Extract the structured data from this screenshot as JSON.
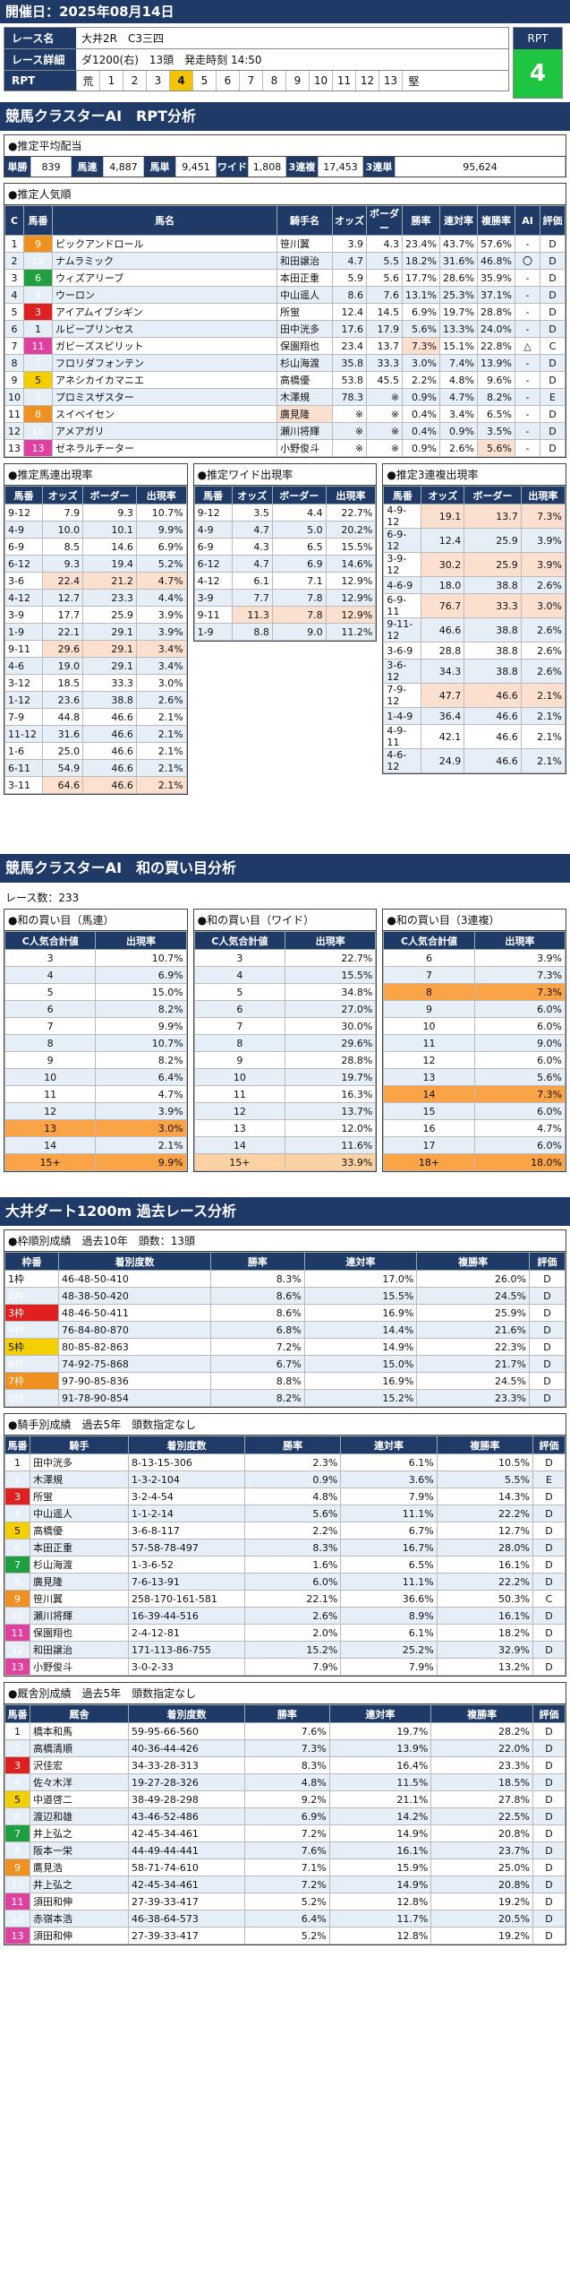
{
  "date": "開催日：2025年08月14日",
  "race": {
    "name_label": "レース名",
    "name": "大井2R　C3三四",
    "detail_label": "レース詳細",
    "detail": "ダ1200(右)　13頭　発走時刻 14:50",
    "rpt_label": "RPT",
    "rpt_first": "荒",
    "rpt_cells": [
      "1",
      "2",
      "3",
      "4",
      "5",
      "6",
      "7",
      "8",
      "9",
      "10",
      "11",
      "12",
      "13"
    ],
    "rpt_last": "堅",
    "rpt_selected": "4",
    "rpt_box_label": "RPT",
    "rpt_box_value": "4"
  },
  "sec1": "競馬クラスターAI　RPT分析",
  "avg": {
    "title": "●推定平均配当",
    "items": [
      [
        "単勝",
        "839"
      ],
      [
        "馬連",
        "4,887"
      ],
      [
        "馬単",
        "9,451"
      ],
      [
        "ワイド",
        "1,808"
      ],
      [
        "3連複",
        "17,453"
      ],
      [
        "3連単",
        "95,624"
      ]
    ]
  },
  "pop": {
    "title": "●推定人気順",
    "headers": [
      "C",
      "馬番",
      "馬名",
      "騎手名",
      "オッズ",
      "ボーダー",
      "勝率",
      "連対率",
      "複勝率",
      "AI",
      "評価"
    ],
    "rows": [
      [
        "1",
        "9",
        "ピックアンドロール",
        "笹川翼",
        "3.9",
        "4.3",
        "23.4%",
        "43.7%",
        "57.6%",
        "-",
        "D"
      ],
      [
        "2",
        "12",
        "ナムラミック",
        "和田譲治",
        "4.7",
        "5.5",
        "18.2%",
        "31.6%",
        "46.8%",
        "〇",
        "D"
      ],
      [
        "3",
        "6",
        "ウィズアリーブ",
        "本田正重",
        "5.9",
        "5.6",
        "17.7%",
        "28.6%",
        "35.9%",
        "-",
        "D"
      ],
      [
        "4",
        "4",
        "ウーロン",
        "中山遥人",
        "8.6",
        "7.6",
        "13.1%",
        "25.3%",
        "37.1%",
        "-",
        "D"
      ],
      [
        "5",
        "3",
        "アイアムイブシギン",
        "所蛍",
        "12.4",
        "14.5",
        "6.9%",
        "19.7%",
        "28.8%",
        "-",
        "D"
      ],
      [
        "6",
        "1",
        "ルビープリンセス",
        "田中洸多",
        "17.6",
        "17.9",
        "5.6%",
        "13.3%",
        "24.0%",
        "-",
        "D"
      ],
      [
        "7",
        "11",
        "ガビーズスピリット",
        "保園翔也",
        "23.4",
        "13.7",
        "7.3%",
        "15.1%",
        "22.8%",
        "△",
        "C"
      ],
      [
        "8",
        "7",
        "フロリダフォンテン",
        "杉山海渡",
        "35.8",
        "33.3",
        "3.0%",
        "7.4%",
        "13.9%",
        "-",
        "D"
      ],
      [
        "9",
        "5",
        "アネシカイカマニエ",
        "高橋優",
        "53.8",
        "45.5",
        "2.2%",
        "4.8%",
        "9.6%",
        "-",
        "D"
      ],
      [
        "10",
        "2",
        "プロミスザスター",
        "木澤規",
        "78.3",
        "※",
        "0.9%",
        "4.7%",
        "8.2%",
        "-",
        "E"
      ],
      [
        "11",
        "8",
        "スイベイセン",
        "廣見隆",
        "※",
        "※",
        "0.4%",
        "3.4%",
        "6.5%",
        "-",
        "D"
      ],
      [
        "12",
        "10",
        "アメアガリ",
        "瀬川将輝",
        "※",
        "※",
        "0.4%",
        "0.9%",
        "3.5%",
        "-",
        "D"
      ],
      [
        "13",
        "13",
        "ゼネラルチーター",
        "小野俊斗",
        "※",
        "※",
        "0.9%",
        "2.6%",
        "5.6%",
        "-",
        "D"
      ]
    ]
  },
  "umaren": {
    "title": "●推定馬連出現率",
    "headers": [
      "馬番",
      "オッズ",
      "ボーダー",
      "出現率"
    ],
    "rows": [
      [
        "9-12",
        "7.9",
        "9.3",
        "10.7%"
      ],
      [
        "4-9",
        "10.0",
        "10.1",
        "9.9%"
      ],
      [
        "6-9",
        "8.5",
        "14.6",
        "6.9%"
      ],
      [
        "6-12",
        "9.3",
        "19.4",
        "5.2%"
      ],
      [
        "3-6",
        "22.4",
        "21.2",
        "4.7%"
      ],
      [
        "4-12",
        "12.7",
        "23.3",
        "4.4%"
      ],
      [
        "3-9",
        "17.7",
        "25.9",
        "3.9%"
      ],
      [
        "1-9",
        "22.1",
        "29.1",
        "3.9%"
      ],
      [
        "9-11",
        "29.6",
        "29.1",
        "3.4%"
      ],
      [
        "4-6",
        "19.0",
        "29.1",
        "3.4%"
      ],
      [
        "3-12",
        "18.5",
        "33.3",
        "3.0%"
      ],
      [
        "1-12",
        "23.6",
        "38.8",
        "2.6%"
      ],
      [
        "7-9",
        "44.8",
        "46.6",
        "2.1%"
      ],
      [
        "11-12",
        "31.6",
        "46.6",
        "2.1%"
      ],
      [
        "1-6",
        "25.0",
        "46.6",
        "2.1%"
      ],
      [
        "6-11",
        "54.9",
        "46.6",
        "2.1%"
      ],
      [
        "3-11",
        "64.6",
        "46.6",
        "2.1%"
      ]
    ]
  },
  "wide": {
    "title": "●推定ワイド出現率",
    "headers": [
      "馬番",
      "オッズ",
      "ボーダー",
      "出現率"
    ],
    "rows": [
      [
        "9-12",
        "3.5",
        "4.4",
        "22.7%"
      ],
      [
        "4-9",
        "4.7",
        "5.0",
        "20.2%"
      ],
      [
        "6-9",
        "4.3",
        "6.5",
        "15.5%"
      ],
      [
        "6-12",
        "4.7",
        "6.9",
        "14.6%"
      ],
      [
        "4-12",
        "6.1",
        "7.1",
        "12.9%"
      ],
      [
        "3-9",
        "7.7",
        "7.8",
        "12.9%"
      ],
      [
        "9-11",
        "11.3",
        "7.8",
        "12.9%"
      ],
      [
        "1-9",
        "8.8",
        "9.0",
        "11.2%"
      ]
    ]
  },
  "trio": {
    "title": "●推定3連複出現率",
    "headers": [
      "馬番",
      "オッズ",
      "ボーダー",
      "出現率"
    ],
    "rows": [
      [
        "4-9-12",
        "19.1",
        "13.7",
        "7.3%"
      ],
      [
        "6-9-12",
        "12.4",
        "25.9",
        "3.9%"
      ],
      [
        "3-9-12",
        "30.2",
        "25.9",
        "3.9%"
      ],
      [
        "4-6-9",
        "18.0",
        "38.8",
        "2.6%"
      ],
      [
        "6-9-11",
        "76.7",
        "33.3",
        "3.0%"
      ],
      [
        "9-11-12",
        "46.6",
        "38.8",
        "2.6%"
      ],
      [
        "3-6-9",
        "28.8",
        "38.8",
        "2.6%"
      ],
      [
        "3-6-12",
        "34.3",
        "38.8",
        "2.6%"
      ],
      [
        "7-9-12",
        "47.7",
        "46.6",
        "2.1%"
      ],
      [
        "1-4-9",
        "36.4",
        "46.6",
        "2.1%"
      ],
      [
        "4-9-11",
        "42.1",
        "46.6",
        "2.1%"
      ],
      [
        "4-6-12",
        "24.9",
        "46.6",
        "2.1%"
      ]
    ]
  },
  "sec2": "競馬クラスターAI　和の買い目分析",
  "race_count": "レース数：233",
  "wa1": {
    "title": "●和の買い目（馬連）",
    "headers": [
      "C人気合計値",
      "出現率"
    ],
    "rows": [
      [
        "3",
        "10.7%"
      ],
      [
        "4",
        "6.9%"
      ],
      [
        "5",
        "15.0%"
      ],
      [
        "6",
        "8.2%"
      ],
      [
        "7",
        "9.9%"
      ],
      [
        "8",
        "10.7%"
      ],
      [
        "9",
        "8.2%"
      ],
      [
        "10",
        "6.4%"
      ],
      [
        "11",
        "4.7%"
      ],
      [
        "12",
        "3.9%"
      ],
      [
        "13",
        "3.0%"
      ],
      [
        "14",
        "2.1%"
      ],
      [
        "15+",
        "9.9%"
      ]
    ]
  },
  "wa2": {
    "title": "●和の買い目（ワイド）",
    "headers": [
      "C人気合計値",
      "出現率"
    ],
    "rows": [
      [
        "3",
        "22.7%"
      ],
      [
        "4",
        "15.5%"
      ],
      [
        "5",
        "34.8%"
      ],
      [
        "6",
        "27.0%"
      ],
      [
        "7",
        "30.0%"
      ],
      [
        "8",
        "29.6%"
      ],
      [
        "9",
        "28.8%"
      ],
      [
        "10",
        "19.7%"
      ],
      [
        "11",
        "16.3%"
      ],
      [
        "12",
        "13.7%"
      ],
      [
        "13",
        "12.0%"
      ],
      [
        "14",
        "11.6%"
      ],
      [
        "15+",
        "33.9%"
      ]
    ]
  },
  "wa3": {
    "title": "●和の買い目（3連複）",
    "headers": [
      "C人気合計値",
      "出現率"
    ],
    "rows": [
      [
        "6",
        "3.9%"
      ],
      [
        "7",
        "7.3%"
      ],
      [
        "8",
        "7.3%"
      ],
      [
        "9",
        "6.0%"
      ],
      [
        "10",
        "6.0%"
      ],
      [
        "11",
        "9.0%"
      ],
      [
        "12",
        "6.0%"
      ],
      [
        "13",
        "5.6%"
      ],
      [
        "14",
        "7.3%"
      ],
      [
        "15",
        "6.0%"
      ],
      [
        "16",
        "4.7%"
      ],
      [
        "17",
        "6.0%"
      ],
      [
        "18+",
        "18.0%"
      ]
    ]
  },
  "sec3": "大井ダート1200m 過去レース分析",
  "waku": {
    "title": "●枠順別成績　過去10年　頭数：13頭",
    "headers": [
      "枠番",
      "着別度数",
      "勝率",
      "連対率",
      "複勝率",
      "評価"
    ],
    "rows": [
      [
        "1枠",
        "46-48-50-410",
        "8.3%",
        "17.0%",
        "26.0%",
        "D"
      ],
      [
        "2枠",
        "48-38-50-420",
        "8.6%",
        "15.5%",
        "24.5%",
        "D"
      ],
      [
        "3枠",
        "48-46-50-411",
        "8.6%",
        "16.9%",
        "25.9%",
        "D"
      ],
      [
        "4枠",
        "76-84-80-870",
        "6.8%",
        "14.4%",
        "21.6%",
        "D"
      ],
      [
        "5枠",
        "80-85-82-863",
        "7.2%",
        "14.9%",
        "22.3%",
        "D"
      ],
      [
        "6枠",
        "74-92-75-868",
        "6.7%",
        "15.0%",
        "21.7%",
        "D"
      ],
      [
        "7枠",
        "97-90-85-836",
        "8.8%",
        "16.9%",
        "24.5%",
        "D"
      ],
      [
        "8枠",
        "91-78-90-854",
        "8.2%",
        "15.2%",
        "23.3%",
        "D"
      ]
    ]
  },
  "jockey": {
    "title": "●騎手別成績　過去5年　頭数指定なし",
    "headers": [
      "馬番",
      "騎手",
      "着別度数",
      "勝率",
      "連対率",
      "複勝率",
      "評価"
    ],
    "rows": [
      [
        "1",
        "田中洸多",
        "8-13-15-306",
        "2.3%",
        "6.1%",
        "10.5%",
        "D"
      ],
      [
        "2",
        "木澤規",
        "1-3-2-104",
        "0.9%",
        "3.6%",
        "5.5%",
        "E"
      ],
      [
        "3",
        "所蛍",
        "3-2-4-54",
        "4.8%",
        "7.9%",
        "14.3%",
        "D"
      ],
      [
        "4",
        "中山遥人",
        "1-1-2-14",
        "5.6%",
        "11.1%",
        "22.2%",
        "D"
      ],
      [
        "5",
        "高橋優",
        "3-6-8-117",
        "2.2%",
        "6.7%",
        "12.7%",
        "D"
      ],
      [
        "6",
        "本田正重",
        "57-58-78-497",
        "8.3%",
        "16.7%",
        "28.0%",
        "D"
      ],
      [
        "7",
        "杉山海渡",
        "1-3-6-52",
        "1.6%",
        "6.5%",
        "16.1%",
        "D"
      ],
      [
        "8",
        "廣見隆",
        "7-6-13-91",
        "6.0%",
        "11.1%",
        "22.2%",
        "D"
      ],
      [
        "9",
        "笹川翼",
        "258-170-161-581",
        "22.1%",
        "36.6%",
        "50.3%",
        "C"
      ],
      [
        "10",
        "瀬川将輝",
        "16-39-44-516",
        "2.6%",
        "8.9%",
        "16.1%",
        "D"
      ],
      [
        "11",
        "保園翔也",
        "2-4-12-81",
        "2.0%",
        "6.1%",
        "18.2%",
        "D"
      ],
      [
        "12",
        "和田譲治",
        "171-113-86-755",
        "15.2%",
        "25.2%",
        "32.9%",
        "D"
      ],
      [
        "13",
        "小野俊斗",
        "3-0-2-33",
        "7.9%",
        "7.9%",
        "13.2%",
        "D"
      ]
    ]
  },
  "trainer": {
    "title": "●厩舎別成績　過去5年　頭数指定なし",
    "headers": [
      "馬番",
      "厩舎",
      "着別度数",
      "勝率",
      "連対率",
      "複勝率",
      "評価"
    ],
    "rows": [
      [
        "1",
        "橋本和馬",
        "59-95-66-560",
        "7.6%",
        "19.7%",
        "28.2%",
        "D"
      ],
      [
        "2",
        "高橋清順",
        "40-36-44-426",
        "7.3%",
        "13.9%",
        "22.0%",
        "D"
      ],
      [
        "3",
        "沢佳宏",
        "34-33-28-313",
        "8.3%",
        "16.4%",
        "23.3%",
        "D"
      ],
      [
        "4",
        "佐々木洋",
        "19-27-28-326",
        "4.8%",
        "11.5%",
        "18.5%",
        "D"
      ],
      [
        "5",
        "中道啓二",
        "38-49-28-298",
        "9.2%",
        "21.1%",
        "27.8%",
        "D"
      ],
      [
        "6",
        "渡辺和雄",
        "43-46-52-486",
        "6.9%",
        "14.2%",
        "22.5%",
        "D"
      ],
      [
        "7",
        "井上弘之",
        "42-45-34-461",
        "7.2%",
        "14.9%",
        "20.8%",
        "D"
      ],
      [
        "8",
        "阪本一栄",
        "44-49-44-441",
        "7.6%",
        "16.1%",
        "23.7%",
        "D"
      ],
      [
        "9",
        "鷹見浩",
        "58-71-74-610",
        "7.1%",
        "15.9%",
        "25.0%",
        "D"
      ],
      [
        "10",
        "井上弘之",
        "42-45-34-461",
        "7.2%",
        "14.9%",
        "20.8%",
        "D"
      ],
      [
        "11",
        "須田和伸",
        "27-39-33-417",
        "5.2%",
        "12.8%",
        "19.2%",
        "D"
      ],
      [
        "12",
        "赤嶺本浩",
        "46-38-64-573",
        "6.4%",
        "11.7%",
        "20.5%",
        "D"
      ],
      [
        "13",
        "須田和伸",
        "27-39-33-417",
        "5.2%",
        "12.8%",
        "19.2%",
        "D"
      ]
    ]
  }
}
